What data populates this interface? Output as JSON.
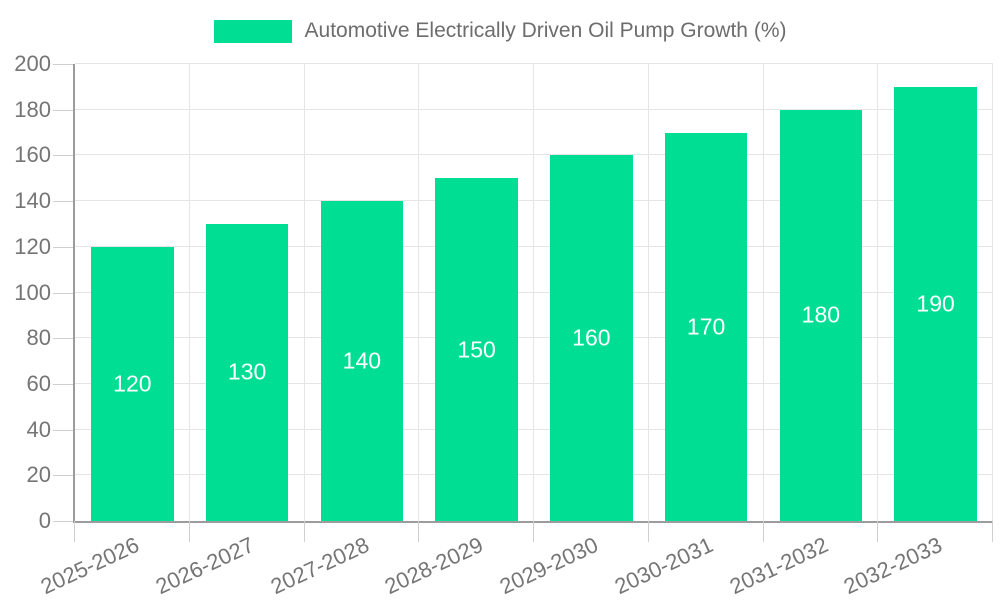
{
  "legend": {
    "label": "Automotive Electrically Driven Oil Pump Growth (%)",
    "swatch_color": "#00DE94"
  },
  "chart_data": {
    "type": "bar",
    "title": "Automotive Electrically Driven Oil Pump Growth (%)",
    "categories": [
      "2025-2026",
      "2026-2027",
      "2027-2028",
      "2028-2029",
      "2029-2030",
      "2030-2031",
      "2031-2032",
      "2032-2033"
    ],
    "values": [
      120,
      130,
      140,
      150,
      160,
      170,
      180,
      190
    ],
    "xlabel": "",
    "ylabel": "",
    "ylim": [
      0,
      200
    ],
    "yticks": [
      0,
      20,
      40,
      60,
      80,
      100,
      120,
      140,
      160,
      180,
      200
    ],
    "grid": true,
    "legend_position": "top-center",
    "x_label_rotation_deg": -25,
    "bar_value_labels_inside": true,
    "colors": {
      "bar": "#00DE94",
      "bar_label_text": "#ffffff",
      "axis_text": "#757575",
      "legend_text": "#6d6d6d",
      "grid_line": "#e5e5e5",
      "axis_line": "#9c9c9c",
      "tick_mark": "#cfcfcf",
      "background": "#ffffff"
    }
  }
}
